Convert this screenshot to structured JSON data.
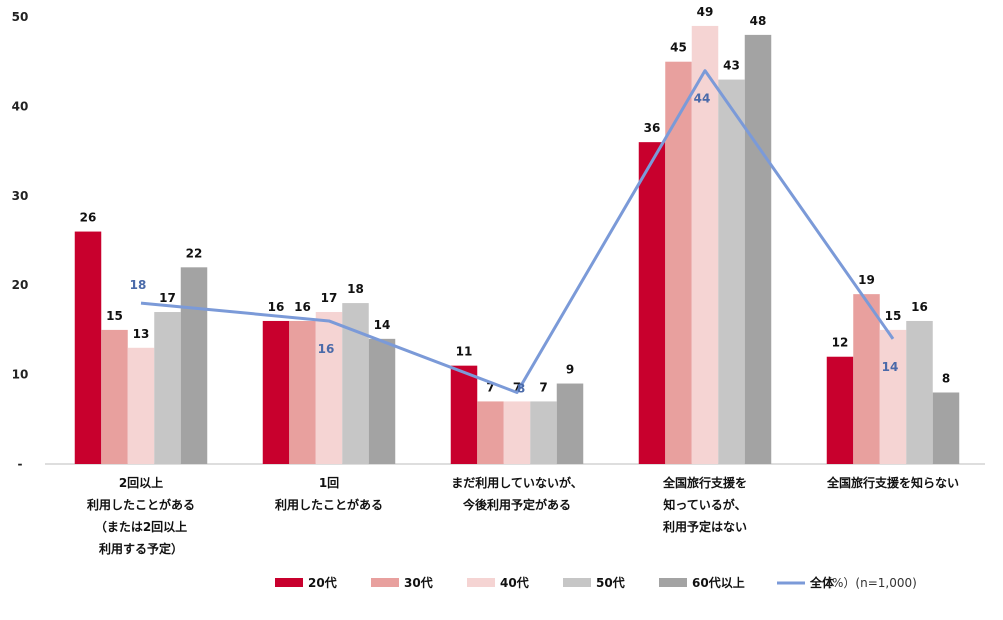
{
  "chart_data": {
    "type": "bar",
    "title": "",
    "xlabel": "",
    "ylabel": "",
    "ylim": [
      0,
      50
    ],
    "yticks": [
      "-",
      "10",
      "20",
      "30",
      "40",
      "50"
    ],
    "grid": false,
    "legend_placement": "bottom",
    "categories": [
      [
        "2回以上",
        "利用したことがある",
        "（または2回以上",
        "利用する予定）"
      ],
      [
        "1回",
        "利用したことがある"
      ],
      [
        "まだ利用していないが、",
        "今後利用予定がある"
      ],
      [
        "全国旅行支援を",
        "知っているが、",
        "利用予定はない"
      ],
      [
        "全国旅行支援を知らない"
      ]
    ],
    "series": [
      {
        "name": "20代",
        "type": "bar",
        "color": "#c8002d",
        "values": [
          26,
          16,
          11,
          36,
          12
        ]
      },
      {
        "name": "30代",
        "type": "bar",
        "color": "#e8a09e",
        "values": [
          15,
          16,
          7,
          45,
          19
        ]
      },
      {
        "name": "40代",
        "type": "bar",
        "color": "#f5d4d3",
        "values": [
          13,
          17,
          7,
          49,
          15
        ]
      },
      {
        "name": "50代",
        "type": "bar",
        "color": "#c6c6c6",
        "values": [
          17,
          18,
          7,
          43,
          16
        ]
      },
      {
        "name": "60代以上",
        "type": "bar",
        "color": "#a3a3a3",
        "values": [
          22,
          14,
          9,
          48,
          8
        ]
      },
      {
        "name": "全体",
        "type": "line",
        "color": "#7b9ad8",
        "values": [
          18,
          16,
          8,
          44,
          14
        ]
      }
    ],
    "note": "（%）(n=1,000)"
  }
}
